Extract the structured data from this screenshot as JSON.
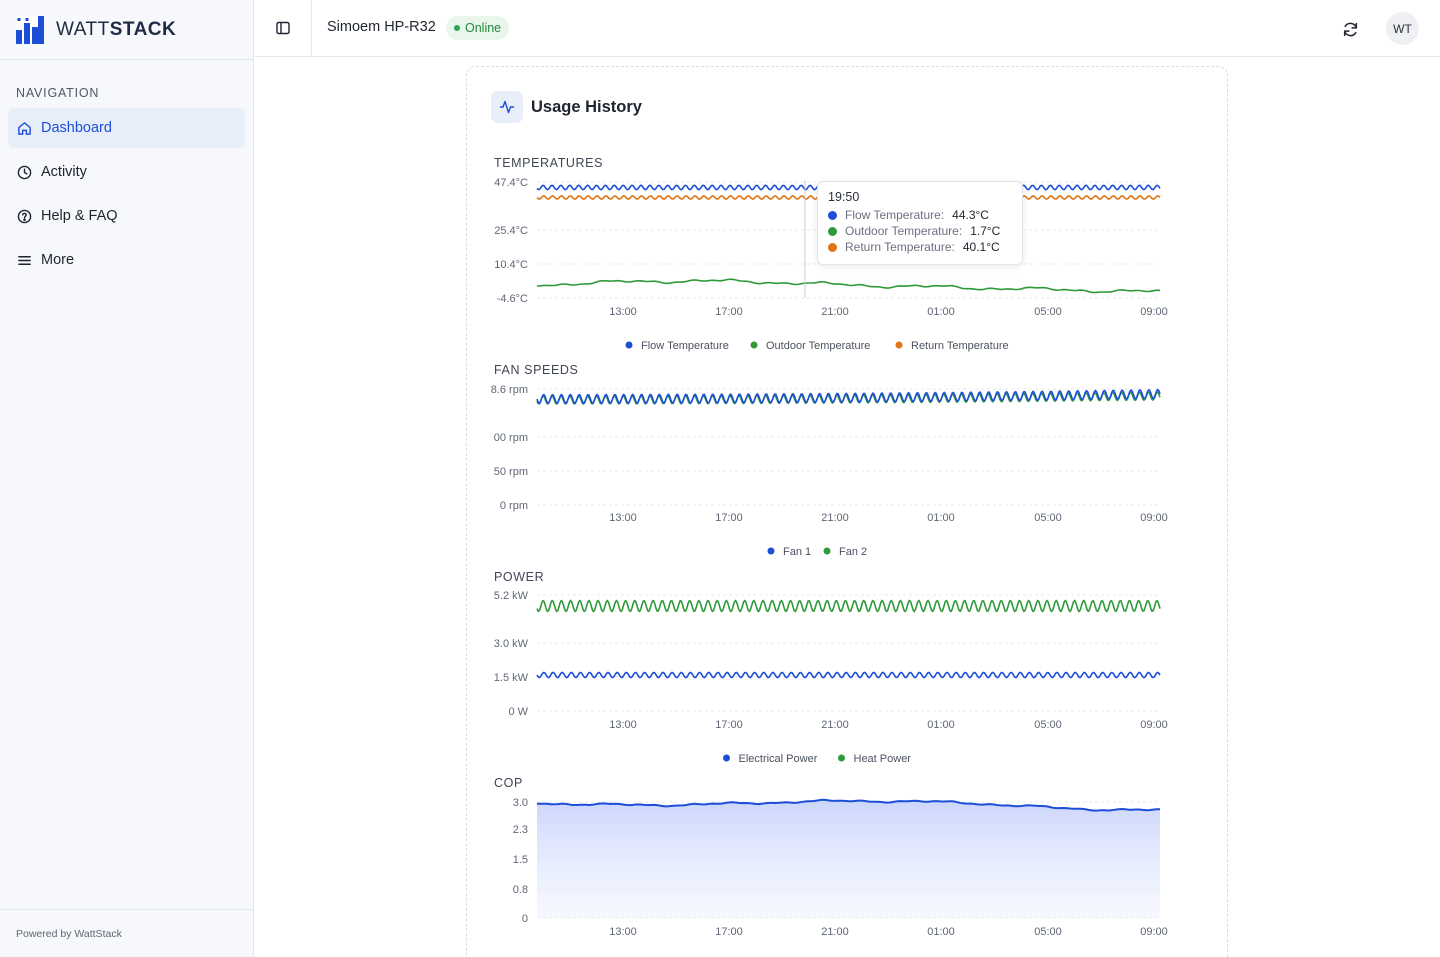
{
  "brand": {
    "name_prefix": "WATT",
    "name_suffix": "STACK",
    "logo_icon": "bar-logo-icon",
    "accent": "#1d4ed8"
  },
  "sidebar": {
    "heading": "NAVIGATION",
    "items": [
      {
        "label": "Dashboard",
        "icon": "home-icon",
        "active": true
      },
      {
        "label": "Activity",
        "icon": "clock-icon",
        "active": false
      },
      {
        "label": "Help & FAQ",
        "icon": "help-circle-icon",
        "active": false
      },
      {
        "label": "More",
        "icon": "menu-icon",
        "active": false
      }
    ],
    "footer": "Powered by WattStack"
  },
  "header": {
    "device_name": "Simoem HP-R32",
    "status": "Online",
    "status_color": "#2da44e",
    "avatar_initials": "WT"
  },
  "card": {
    "title": "Usage History"
  },
  "tooltip": {
    "time": "19:50",
    "rows": [
      {
        "label": "Flow Temperature:",
        "value": "44.3°C",
        "color": "#1d4ed8"
      },
      {
        "label": "Outdoor Temperature:",
        "value": "1.7°C",
        "color": "#2e9a3a"
      },
      {
        "label": "Return Temperature:",
        "value": "40.1°C",
        "color": "#e07412"
      }
    ]
  },
  "chart_data": [
    {
      "type": "line",
      "title": "TEMPERATURES",
      "x_ticks": [
        "13:00",
        "17:00",
        "21:00",
        "01:00",
        "05:00",
        "09:00"
      ],
      "y_ticks": [
        "47.4°C",
        "25.4°C",
        "10.4°C",
        "-4.6°C"
      ],
      "series": [
        {
          "name": "Flow Temperature",
          "color": "#1d4ed8",
          "base": 46.5,
          "wave": 1.2
        },
        {
          "name": "Outdoor Temperature",
          "color": "#2e9a3a",
          "base": 1.0,
          "wave": 0.4
        },
        {
          "name": "Return Temperature",
          "color": "#e07412",
          "base": 43.8,
          "wave": 0.8
        }
      ]
    },
    {
      "type": "line",
      "title": "FAN SPEEDS",
      "x_ticks": [
        "13:00",
        "17:00",
        "21:00",
        "01:00",
        "05:00",
        "09:00"
      ],
      "y_ticks": [
        "8.6 rpm",
        "00 rpm",
        "50 rpm",
        "0 rpm"
      ],
      "series": [
        {
          "name": "Fan 1",
          "color": "#1d4ed8"
        },
        {
          "name": "Fan 2",
          "color": "#2e9a3a"
        }
      ]
    },
    {
      "type": "line",
      "title": "POWER",
      "x_ticks": [
        "13:00",
        "17:00",
        "21:00",
        "01:00",
        "05:00",
        "09:00"
      ],
      "y_ticks": [
        "5.2 kW",
        "3.0 kW",
        "1.5 kW",
        "0 W"
      ],
      "series": [
        {
          "name": "Electrical Power",
          "color": "#1d4ed8",
          "base": 1.4
        },
        {
          "name": "Heat Power",
          "color": "#2e9a3a",
          "base": 4.8
        }
      ]
    },
    {
      "type": "area",
      "title": "COP",
      "x_ticks": [
        "13:00",
        "17:00",
        "21:00",
        "01:00",
        "05:00",
        "09:00"
      ],
      "y_ticks": [
        "3.0",
        "2.3",
        "1.5",
        "0.8",
        "0"
      ],
      "series": [
        {
          "name": "",
          "color": "#1d4ed8",
          "base": 2.75
        }
      ]
    }
  ]
}
